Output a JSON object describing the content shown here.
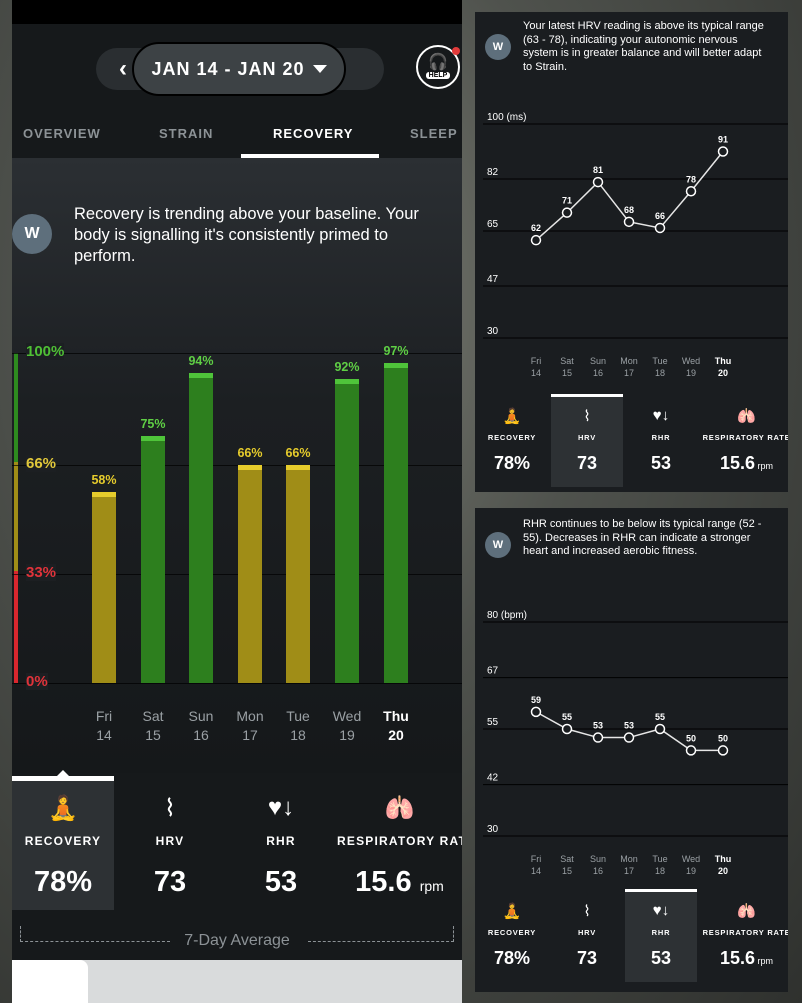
{
  "header": {
    "date_range": "JAN 14 - JAN 20",
    "help_label": "HELP"
  },
  "tabs": [
    {
      "label": "OVERVIEW",
      "active": false
    },
    {
      "label": "STRAIN",
      "active": false
    },
    {
      "label": "RECOVERY",
      "active": true
    },
    {
      "label": "SLEEP",
      "active": false
    }
  ],
  "recovery": {
    "insight": "Recovery is trending above your baseline. Your body is signalling it's consistently primed to perform.",
    "logo": "W",
    "y_ticks": [
      "100%",
      "66%",
      "33%",
      "0%"
    ]
  },
  "chart_data": [
    {
      "type": "bar",
      "categories": [
        "Fri 14",
        "Sat 15",
        "Sun 16",
        "Mon 17",
        "Tue 18",
        "Wed 19",
        "Thu 20"
      ],
      "days": [
        {
          "name": "Fri",
          "num": "14"
        },
        {
          "name": "Sat",
          "num": "15"
        },
        {
          "name": "Sun",
          "num": "16"
        },
        {
          "name": "Mon",
          "num": "17"
        },
        {
          "name": "Tue",
          "num": "18"
        },
        {
          "name": "Wed",
          "num": "19"
        },
        {
          "name": "Thu",
          "num": "20"
        }
      ],
      "values": [
        58,
        75,
        94,
        66,
        66,
        92,
        97
      ],
      "value_labels": [
        "58%",
        "75%",
        "94%",
        "66%",
        "66%",
        "92%",
        "97%"
      ],
      "ylim": [
        0,
        100
      ],
      "yticks": [
        "0%",
        "33%",
        "66%",
        "100%"
      ],
      "colors": {
        "green": "#2e8b1f",
        "yellow": "#a08d17",
        "red": "#d9272e"
      }
    },
    {
      "type": "line",
      "categories": [
        "Fri 14",
        "Sat 15",
        "Sun 16",
        "Mon 17",
        "Tue 18",
        "Wed 19",
        "Thu 20"
      ],
      "values": [
        62,
        71,
        81,
        68,
        66,
        78,
        91
      ],
      "yticks": [
        30,
        47,
        65,
        82,
        100
      ],
      "ylabel_unit": "(ms)",
      "ylim": [
        30,
        100
      ]
    },
    {
      "type": "line",
      "categories": [
        "Fri 14",
        "Sat 15",
        "Sun 16",
        "Mon 17",
        "Tue 18",
        "Wed 19",
        "Thu 20"
      ],
      "values": [
        59,
        55,
        53,
        53,
        55,
        50,
        50
      ],
      "yticks": [
        30,
        42,
        55,
        67,
        80
      ],
      "ylabel_unit": "(bpm)",
      "ylim": [
        30,
        80
      ]
    }
  ],
  "metrics": {
    "recovery": {
      "label": "RECOVERY",
      "value": "78%"
    },
    "hrv": {
      "label": "HRV",
      "value": "73"
    },
    "rhr": {
      "label": "RHR",
      "value": "53"
    },
    "resp": {
      "label": "RESPIRATORY RATE",
      "value": "15.6",
      "unit": "rpm"
    }
  },
  "seven_day_avg": "7-Day Average",
  "hrv_panel": {
    "insight": "Your latest HRV reading is above its typical range (63 - 78), indicating your autonomic nervous system is in greater balance and will better adapt to Strain."
  },
  "rhr_panel": {
    "insight": "RHR continues to be below its typical range (52 - 55). Decreases in RHR can indicate a stronger heart and increased aerobic fitness."
  }
}
